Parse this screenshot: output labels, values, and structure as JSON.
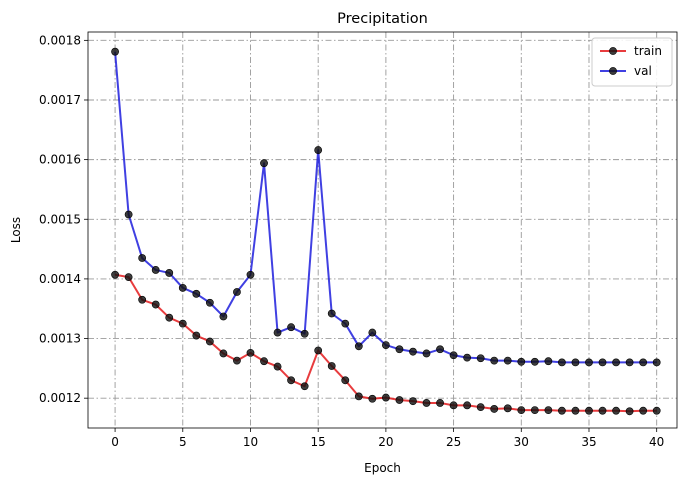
{
  "chart_data": {
    "type": "line",
    "title": "Precipitation",
    "xlabel": "Epoch",
    "ylabel": "Loss",
    "xlim": [
      -2,
      41.5
    ],
    "ylim": [
      0.00115,
      0.001814
    ],
    "xticks": [
      0,
      5,
      10,
      15,
      20,
      25,
      30,
      35,
      40
    ],
    "yticks": [
      0.0012,
      0.0013,
      0.0014,
      0.0015,
      0.0016,
      0.0017,
      0.0018
    ],
    "ytick_labels": [
      "0.0012",
      "0.0013",
      "0.0014",
      "0.0015",
      "0.0016",
      "0.0017",
      "0.0018"
    ],
    "grid": true,
    "legend_position": "top-right",
    "x": [
      0,
      1,
      2,
      3,
      4,
      5,
      6,
      7,
      8,
      9,
      10,
      11,
      12,
      13,
      14,
      15,
      16,
      17,
      18,
      19,
      20,
      21,
      22,
      23,
      24,
      25,
      26,
      27,
      28,
      29,
      30,
      31,
      32,
      33,
      34,
      35,
      36,
      37,
      38,
      39,
      40
    ],
    "series": [
      {
        "name": "train",
        "color": "#e41a1c",
        "values": [
          0.001407,
          0.001403,
          0.001365,
          0.001357,
          0.001335,
          0.001325,
          0.001305,
          0.001295,
          0.001275,
          0.001263,
          0.001276,
          0.001262,
          0.001253,
          0.00123,
          0.00122,
          0.00128,
          0.001254,
          0.00123,
          0.001203,
          0.001199,
          0.001201,
          0.001197,
          0.001195,
          0.001192,
          0.001192,
          0.001188,
          0.001188,
          0.001185,
          0.001182,
          0.001183,
          0.00118,
          0.00118,
          0.00118,
          0.001179,
          0.001179,
          0.001179,
          0.001179,
          0.001179,
          0.001178,
          0.001179,
          0.001179
        ]
      },
      {
        "name": "val",
        "color": "#1f1fdd",
        "values": [
          0.001781,
          0.001508,
          0.001435,
          0.001415,
          0.00141,
          0.001385,
          0.001375,
          0.00136,
          0.001337,
          0.001378,
          0.001407,
          0.001594,
          0.00131,
          0.001319,
          0.001308,
          0.001616,
          0.001342,
          0.001325,
          0.001287,
          0.00131,
          0.001289,
          0.001282,
          0.001278,
          0.001275,
          0.001282,
          0.001272,
          0.001268,
          0.001267,
          0.001263,
          0.001263,
          0.001261,
          0.001261,
          0.001262,
          0.00126,
          0.00126,
          0.00126,
          0.00126,
          0.00126,
          0.00126,
          0.00126,
          0.00126
        ]
      }
    ]
  }
}
